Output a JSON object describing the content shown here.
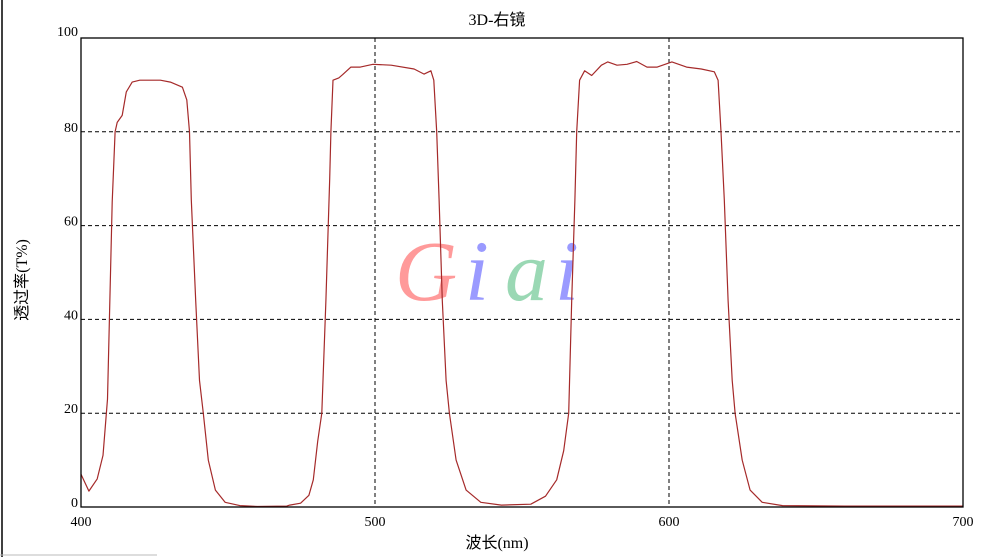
{
  "chart_data": {
    "type": "line",
    "title": "3D-右镜",
    "xlabel": "波长(nm)",
    "ylabel": "透过率(T%)",
    "xlim": [
      400,
      700
    ],
    "ylim": [
      0,
      100
    ],
    "xticks": [
      "400",
      "500",
      "600",
      "700"
    ],
    "yticks": [
      "0",
      "20",
      "40",
      "60",
      "80",
      "100"
    ],
    "grid": "dashed",
    "line_color": "#a52a2a",
    "watermark": {
      "text": "Giai",
      "colors": [
        "#ff9a9a",
        "#9a9aff",
        "#9ad8b4",
        "#9a9aff"
      ]
    },
    "series": [
      {
        "x": [
          400,
          402.7,
          405.5,
          407.5,
          409,
          410.6,
          411.6,
          412.3,
          414,
          415.4,
          417.4,
          420,
          427,
          430.4,
          434.5,
          436,
          436.9,
          437.5,
          439,
          440.3,
          441.6,
          443.3,
          445.7,
          449,
          454,
          460,
          470,
          471,
          474.7,
          477.5,
          479,
          480.5,
          481.9,
          483.3,
          484.6,
          485,
          485.7,
          487.7,
          489,
          491.8,
          495,
          499.3,
          505.5,
          513.3,
          516.7,
          519,
          520,
          521,
          521.8,
          522.9,
          524.2,
          525.3,
          527.6,
          531,
          536,
          543,
          553,
          558,
          561.8,
          564.2,
          565.9,
          566.9,
          568,
          568.6,
          569.6,
          571.3,
          573.7,
          577,
          579.2,
          582.3,
          585.7,
          589,
          592.5,
          596,
          601,
          606,
          611,
          615.4,
          616.7,
          617.7,
          618.8,
          620.1,
          621.5,
          622.5,
          624.9,
          627.6,
          631.7,
          638.6,
          660,
          700
        ],
        "y": [
          7,
          3.4,
          6,
          11,
          23,
          65,
          80,
          82,
          83.5,
          88.5,
          90.6,
          91,
          91,
          90.6,
          89.5,
          86.8,
          80,
          65.5,
          44,
          27,
          20,
          10,
          3.6,
          1,
          0.3,
          0.1,
          0.2,
          0.4,
          0.8,
          2.5,
          5.8,
          14,
          20,
          44,
          70,
          80,
          91,
          91.5,
          92.2,
          93.8,
          93.8,
          94.4,
          94.2,
          93.4,
          92.3,
          93,
          91,
          80,
          65.5,
          44,
          27,
          20,
          10,
          3.6,
          1,
          0.4,
          0.6,
          2.3,
          5.8,
          12,
          20,
          44,
          65.5,
          80,
          91,
          93,
          92,
          94.2,
          94.9,
          94.2,
          94.4,
          95,
          93.8,
          93.8,
          94.9,
          93.8,
          93.4,
          92.8,
          91,
          80,
          65.5,
          44,
          27,
          20,
          10,
          3.6,
          1,
          0.3,
          0.2,
          0.2
        ]
      }
    ]
  }
}
